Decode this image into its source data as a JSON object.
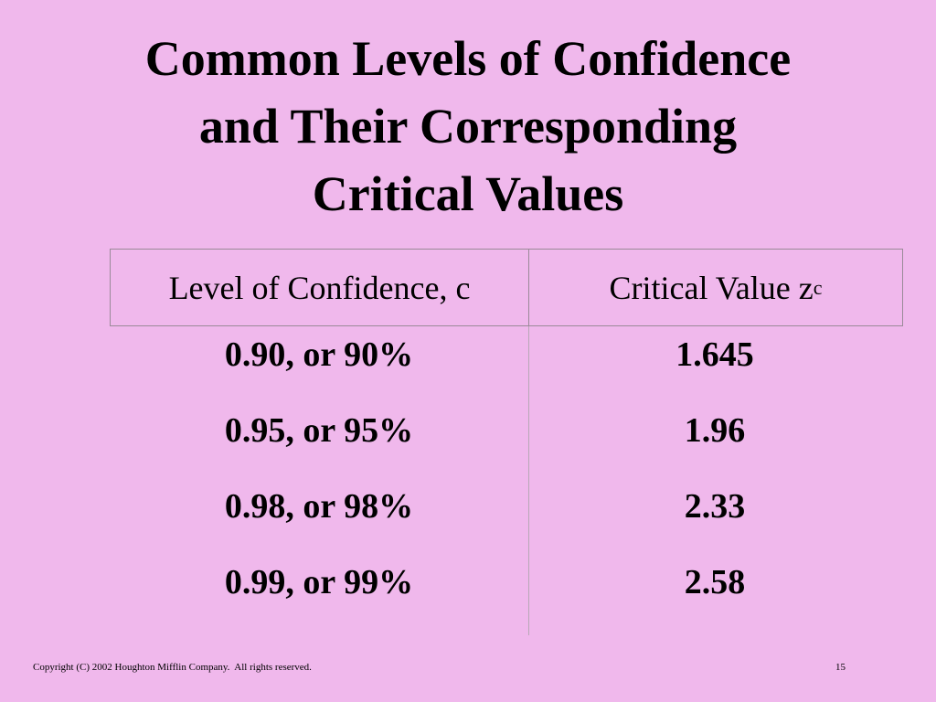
{
  "title": [
    "Common Levels of Confidence",
    "and Their Corresponding",
    "Critical Values"
  ],
  "table": {
    "header": [
      {
        "text": "Level of Confidence, c"
      },
      {
        "text": "Critical Value z",
        "subscript": "c"
      }
    ],
    "rows": [
      [
        "0.90, or 90%",
        "1.645"
      ],
      [
        "0.95, or 95%",
        "1.96"
      ],
      [
        "0.98, or 98%",
        "2.33"
      ],
      [
        "0.99, or 99%",
        "2.58"
      ]
    ]
  },
  "footer": {
    "copyright": "Copyright (C) 2002 Houghton Mifflin Company.  All rights reserved.",
    "page": "15"
  }
}
